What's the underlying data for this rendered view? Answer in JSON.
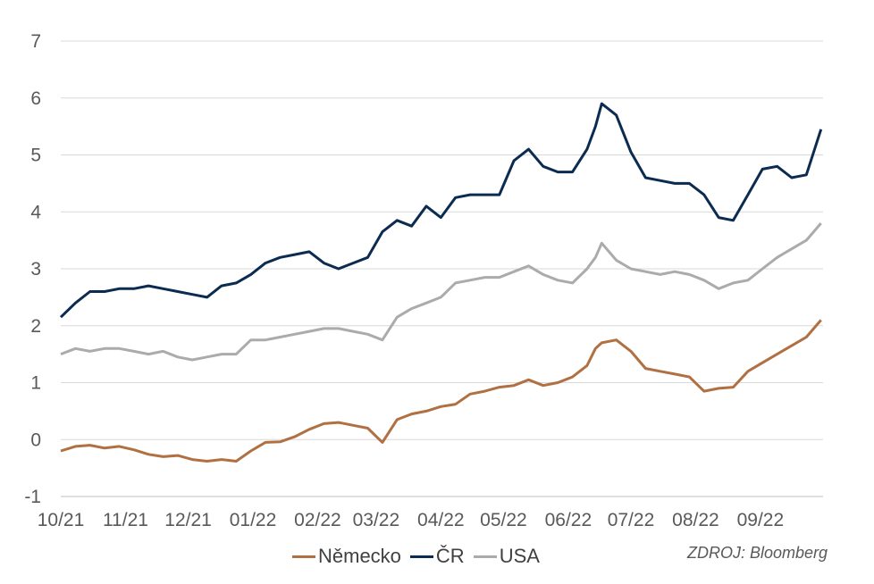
{
  "chart_data": {
    "type": "line",
    "title": "",
    "xlabel": "",
    "ylabel": "",
    "ylim": [
      -1,
      7
    ],
    "yticks": [
      -1,
      0,
      1,
      2,
      3,
      4,
      5,
      6,
      7
    ],
    "grid": "horizontal",
    "legend_position": "bottom",
    "x_tick_labels": [
      "10/21",
      "11/21",
      "12/21",
      "01/22",
      "02/22",
      "03/22",
      "04/22",
      "05/22",
      "06/22",
      "07/22",
      "08/22",
      "09/22"
    ],
    "x_dates": [
      "2021-10-01",
      "2021-10-08",
      "2021-10-15",
      "2021-10-22",
      "2021-10-29",
      "2021-11-05",
      "2021-11-12",
      "2021-11-19",
      "2021-11-26",
      "2021-12-03",
      "2021-12-10",
      "2021-12-17",
      "2021-12-24",
      "2021-12-31",
      "2022-01-07",
      "2022-01-14",
      "2022-01-21",
      "2022-01-28",
      "2022-02-04",
      "2022-02-11",
      "2022-02-18",
      "2022-02-25",
      "2022-03-04",
      "2022-03-11",
      "2022-03-18",
      "2022-03-25",
      "2022-04-01",
      "2022-04-08",
      "2022-04-15",
      "2022-04-22",
      "2022-04-29",
      "2022-05-06",
      "2022-05-13",
      "2022-05-20",
      "2022-05-27",
      "2022-06-03",
      "2022-06-10",
      "2022-06-14",
      "2022-06-17",
      "2022-06-24",
      "2022-07-01",
      "2022-07-08",
      "2022-07-15",
      "2022-07-22",
      "2022-07-29",
      "2022-08-05",
      "2022-08-12",
      "2022-08-19",
      "2022-08-26",
      "2022-09-02",
      "2022-09-09",
      "2022-09-16",
      "2022-09-23",
      "2022-09-30"
    ],
    "series": [
      {
        "name": "Německo",
        "color": "#B07042",
        "values": [
          -0.2,
          -0.12,
          -0.1,
          -0.15,
          -0.12,
          -0.18,
          -0.26,
          -0.3,
          -0.28,
          -0.35,
          -0.38,
          -0.35,
          -0.38,
          -0.2,
          -0.05,
          -0.04,
          0.05,
          0.18,
          0.28,
          0.3,
          0.25,
          0.2,
          -0.05,
          0.35,
          0.45,
          0.5,
          0.58,
          0.62,
          0.8,
          0.85,
          0.92,
          0.95,
          1.05,
          0.95,
          1.0,
          1.1,
          1.3,
          1.6,
          1.7,
          1.75,
          1.55,
          1.25,
          1.2,
          1.15,
          1.1,
          0.85,
          0.9,
          0.92,
          1.2,
          1.35,
          1.5,
          1.65,
          1.8,
          2.1
        ]
      },
      {
        "name": "ČR",
        "color": "#0B2B50",
        "values": [
          2.15,
          2.4,
          2.6,
          2.6,
          2.65,
          2.65,
          2.7,
          2.65,
          2.6,
          2.55,
          2.5,
          2.7,
          2.75,
          2.9,
          3.1,
          3.2,
          3.25,
          3.3,
          3.1,
          3.0,
          3.1,
          3.2,
          3.65,
          3.85,
          3.75,
          4.1,
          3.9,
          4.25,
          4.3,
          4.3,
          4.3,
          4.9,
          5.1,
          4.8,
          4.7,
          4.7,
          5.1,
          5.5,
          5.9,
          5.7,
          5.05,
          4.6,
          4.55,
          4.5,
          4.5,
          4.3,
          3.9,
          3.85,
          4.3,
          4.75,
          4.8,
          4.6,
          4.65,
          5.45
        ]
      },
      {
        "name": "USA",
        "color": "#ABABAB",
        "values": [
          1.5,
          1.6,
          1.55,
          1.6,
          1.6,
          1.55,
          1.5,
          1.55,
          1.45,
          1.4,
          1.45,
          1.5,
          1.5,
          1.75,
          1.75,
          1.8,
          1.85,
          1.9,
          1.95,
          1.95,
          1.9,
          1.85,
          1.75,
          2.15,
          2.3,
          2.4,
          2.5,
          2.75,
          2.8,
          2.85,
          2.85,
          2.95,
          3.05,
          2.9,
          2.8,
          2.75,
          3.0,
          3.2,
          3.45,
          3.15,
          3.0,
          2.95,
          2.9,
          2.95,
          2.9,
          2.8,
          2.65,
          2.75,
          2.8,
          3.0,
          3.2,
          3.35,
          3.5,
          3.8
        ]
      }
    ]
  },
  "source_text": "ZDROJ: Bloomberg"
}
